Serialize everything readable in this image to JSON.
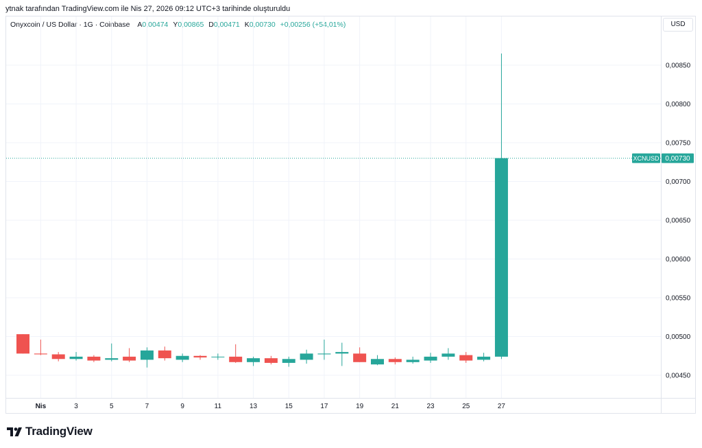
{
  "attribution": "ytnak tarafından TradingView.com ile Nis 27, 2026 09:12 UTC+3 tarihinde oluşturuldu",
  "legend": {
    "symbol": "Onyxcoin / US Dollar · 1G · Coinbase",
    "open_label": "A",
    "open": "0,00474",
    "high_label": "Y",
    "high": "0,00865",
    "low_label": "D",
    "low": "0,00471",
    "close_label": "K",
    "close": "0,00730",
    "change": "+0,00256 (+54,01%)"
  },
  "currency": "USD",
  "brand": {
    "name": "TradingView",
    "logo_icon": "tradingview-logo-icon"
  },
  "colors": {
    "up": "#26a69a",
    "down": "#ef5350",
    "grid": "#f0f3fa",
    "axis_text": "#131722"
  },
  "chart_data": {
    "type": "candlestick",
    "title": "",
    "xlabel": "",
    "ylabel": "",
    "ylim": [
      0.0041,
      0.00895
    ],
    "grid": true,
    "y_ticks": [
      {
        "value": 0.0085,
        "label": "0,00850"
      },
      {
        "value": 0.008,
        "label": "0,00800"
      },
      {
        "value": 0.0075,
        "label": "0,00750"
      },
      {
        "value": 0.007,
        "label": "0,00700"
      },
      {
        "value": 0.0065,
        "label": "0,00650"
      },
      {
        "value": 0.006,
        "label": "0,00600"
      },
      {
        "value": 0.0055,
        "label": "0,00550"
      },
      {
        "value": 0.005,
        "label": "0,00500"
      },
      {
        "value": 0.0045,
        "label": "0,00450"
      }
    ],
    "x_ticks": [
      {
        "day": 1,
        "label": "Nis"
      },
      {
        "day": 3,
        "label": "3"
      },
      {
        "day": 5,
        "label": "5"
      },
      {
        "day": 7,
        "label": "7"
      },
      {
        "day": 9,
        "label": "9"
      },
      {
        "day": 11,
        "label": "11"
      },
      {
        "day": 13,
        "label": "13"
      },
      {
        "day": 15,
        "label": "15"
      },
      {
        "day": 17,
        "label": "17"
      },
      {
        "day": 19,
        "label": "19"
      },
      {
        "day": 21,
        "label": "21"
      },
      {
        "day": 23,
        "label": "23"
      },
      {
        "day": 25,
        "label": "25"
      },
      {
        "day": 27,
        "label": "27"
      }
    ],
    "last_price": {
      "value": 0.0073,
      "symbol": "XCNUSD",
      "label": "0,00730"
    },
    "candles": [
      {
        "day": 0,
        "o": 0.00503,
        "h": 0.00503,
        "l": 0.00478,
        "c": 0.00478
      },
      {
        "day": 1,
        "o": 0.00478,
        "h": 0.00496,
        "l": 0.00476,
        "c": 0.00477
      },
      {
        "day": 2,
        "o": 0.00477,
        "h": 0.0048,
        "l": 0.00468,
        "c": 0.00471
      },
      {
        "day": 3,
        "o": 0.00471,
        "h": 0.0048,
        "l": 0.00469,
        "c": 0.00474
      },
      {
        "day": 4,
        "o": 0.00474,
        "h": 0.00476,
        "l": 0.00467,
        "c": 0.00469
      },
      {
        "day": 5,
        "o": 0.0047,
        "h": 0.00491,
        "l": 0.00468,
        "c": 0.00472
      },
      {
        "day": 6,
        "o": 0.00474,
        "h": 0.00485,
        "l": 0.00467,
        "c": 0.00469
      },
      {
        "day": 7,
        "o": 0.0047,
        "h": 0.00486,
        "l": 0.0046,
        "c": 0.00482
      },
      {
        "day": 8,
        "o": 0.00482,
        "h": 0.00487,
        "l": 0.00469,
        "c": 0.00472
      },
      {
        "day": 9,
        "o": 0.0047,
        "h": 0.00478,
        "l": 0.00467,
        "c": 0.00475
      },
      {
        "day": 10,
        "o": 0.00475,
        "h": 0.00476,
        "l": 0.0047,
        "c": 0.00473
      },
      {
        "day": 11,
        "o": 0.00474,
        "h": 0.00478,
        "l": 0.0047,
        "c": 0.00474
      },
      {
        "day": 12,
        "o": 0.00474,
        "h": 0.0049,
        "l": 0.00466,
        "c": 0.00467
      },
      {
        "day": 13,
        "o": 0.00467,
        "h": 0.00474,
        "l": 0.00462,
        "c": 0.00472
      },
      {
        "day": 14,
        "o": 0.00472,
        "h": 0.00475,
        "l": 0.00464,
        "c": 0.00466
      },
      {
        "day": 15,
        "o": 0.00466,
        "h": 0.00474,
        "l": 0.00461,
        "c": 0.00471
      },
      {
        "day": 16,
        "o": 0.0047,
        "h": 0.00483,
        "l": 0.00465,
        "c": 0.00478
      },
      {
        "day": 17,
        "o": 0.00477,
        "h": 0.00496,
        "l": 0.0047,
        "c": 0.00478
      },
      {
        "day": 18,
        "o": 0.00478,
        "h": 0.00492,
        "l": 0.00462,
        "c": 0.0048
      },
      {
        "day": 19,
        "o": 0.00478,
        "h": 0.00486,
        "l": 0.00467,
        "c": 0.00467
      },
      {
        "day": 20,
        "o": 0.00464,
        "h": 0.00476,
        "l": 0.00463,
        "c": 0.00471
      },
      {
        "day": 21,
        "o": 0.00471,
        "h": 0.00473,
        "l": 0.00464,
        "c": 0.00467
      },
      {
        "day": 22,
        "o": 0.00467,
        "h": 0.00474,
        "l": 0.00465,
        "c": 0.0047
      },
      {
        "day": 23,
        "o": 0.00469,
        "h": 0.00479,
        "l": 0.00466,
        "c": 0.00474
      },
      {
        "day": 24,
        "o": 0.00474,
        "h": 0.00485,
        "l": 0.0047,
        "c": 0.00478
      },
      {
        "day": 25,
        "o": 0.00476,
        "h": 0.0048,
        "l": 0.00466,
        "c": 0.00469
      },
      {
        "day": 26,
        "o": 0.0047,
        "h": 0.00479,
        "l": 0.00468,
        "c": 0.00474
      },
      {
        "day": 27,
        "o": 0.00474,
        "h": 0.00865,
        "l": 0.00471,
        "c": 0.0073
      }
    ]
  }
}
